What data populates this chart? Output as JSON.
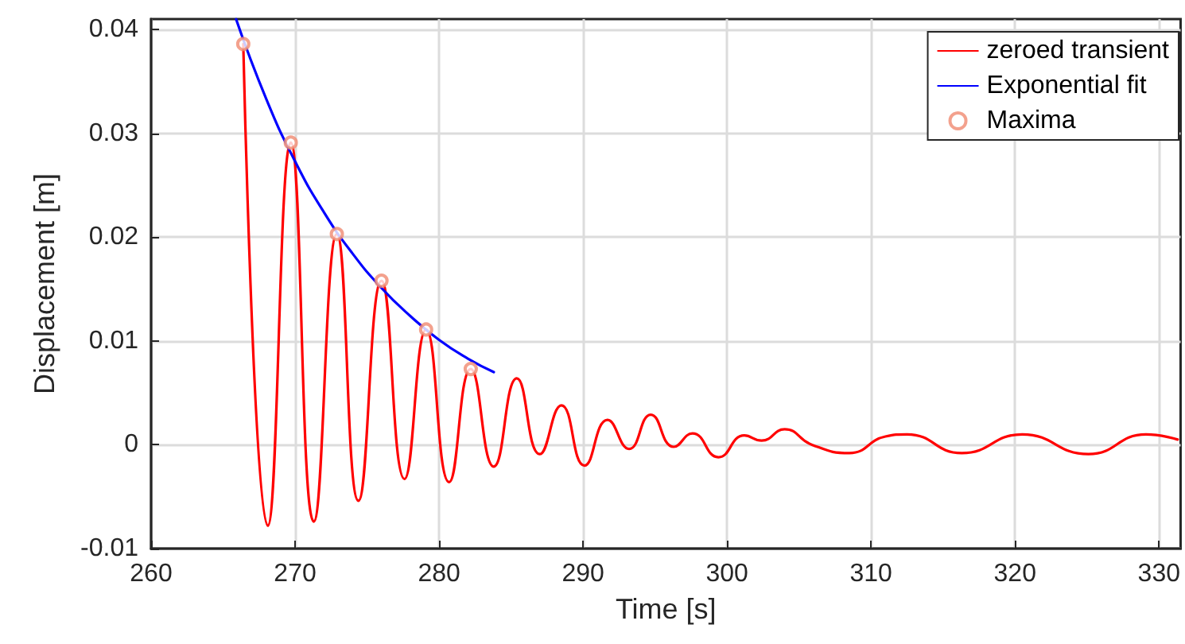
{
  "chart_data": {
    "type": "line",
    "xlabel": "Time [s]",
    "ylabel": "Displacement [m]",
    "xlim": [
      260,
      331.5
    ],
    "ylim": [
      -0.01,
      0.041
    ],
    "xticks": [
      260,
      270,
      280,
      290,
      300,
      310,
      320,
      330
    ],
    "yticks": [
      -0.01,
      0,
      0.01,
      0.02,
      0.03,
      0.04
    ],
    "grid": true,
    "legend": "top right",
    "series": [
      {
        "name": "zeroed transient",
        "color": "#ff0000",
        "marker": "none",
        "x": [
          266.4,
          268.1,
          269.7,
          271.3,
          272.9,
          274.4,
          276.0,
          277.6,
          279.1,
          280.7,
          282.2,
          283.8,
          285.4,
          287.0,
          288.5,
          290.1,
          291.7,
          293.2,
          294.7,
          296.3,
          297.6,
          299.4,
          301.2,
          302.4,
          304.0,
          305.9,
          308.5,
          311.0,
          312.5,
          316.3,
          320.5,
          325.1,
          329.1,
          331.3
        ],
        "values": [
          0.0386,
          -0.0078,
          0.0291,
          -0.0074,
          0.0203,
          -0.0054,
          0.0158,
          -0.0033,
          0.0111,
          -0.0036,
          0.0073,
          -0.0021,
          0.0064,
          -0.0009,
          0.0038,
          -0.002,
          0.0024,
          -0.0004,
          0.0029,
          -0.0002,
          0.0011,
          -0.0012,
          0.0009,
          0.0004,
          0.0015,
          0.0,
          -0.0008,
          0.0008,
          0.001,
          -0.0008,
          0.001,
          -0.0009,
          0.001,
          0.0005
        ]
      },
      {
        "name": "Exponential fit",
        "color": "#0000ff",
        "marker": "none",
        "x": [
          265.9,
          268,
          270,
          272,
          274,
          276,
          278,
          280,
          282,
          283.8
        ],
        "values": [
          0.041,
          0.0333,
          0.0273,
          0.0224,
          0.0184,
          0.0151,
          0.0124,
          0.0101,
          0.0083,
          0.007
        ]
      },
      {
        "name": "Maxima",
        "color": "#f08a70",
        "type": "scatter",
        "marker": "circle",
        "x": [
          266.4,
          269.7,
          272.9,
          276.0,
          279.1,
          282.2
        ],
        "values": [
          0.0386,
          0.0291,
          0.0203,
          0.0158,
          0.0111,
          0.0073
        ]
      }
    ]
  }
}
